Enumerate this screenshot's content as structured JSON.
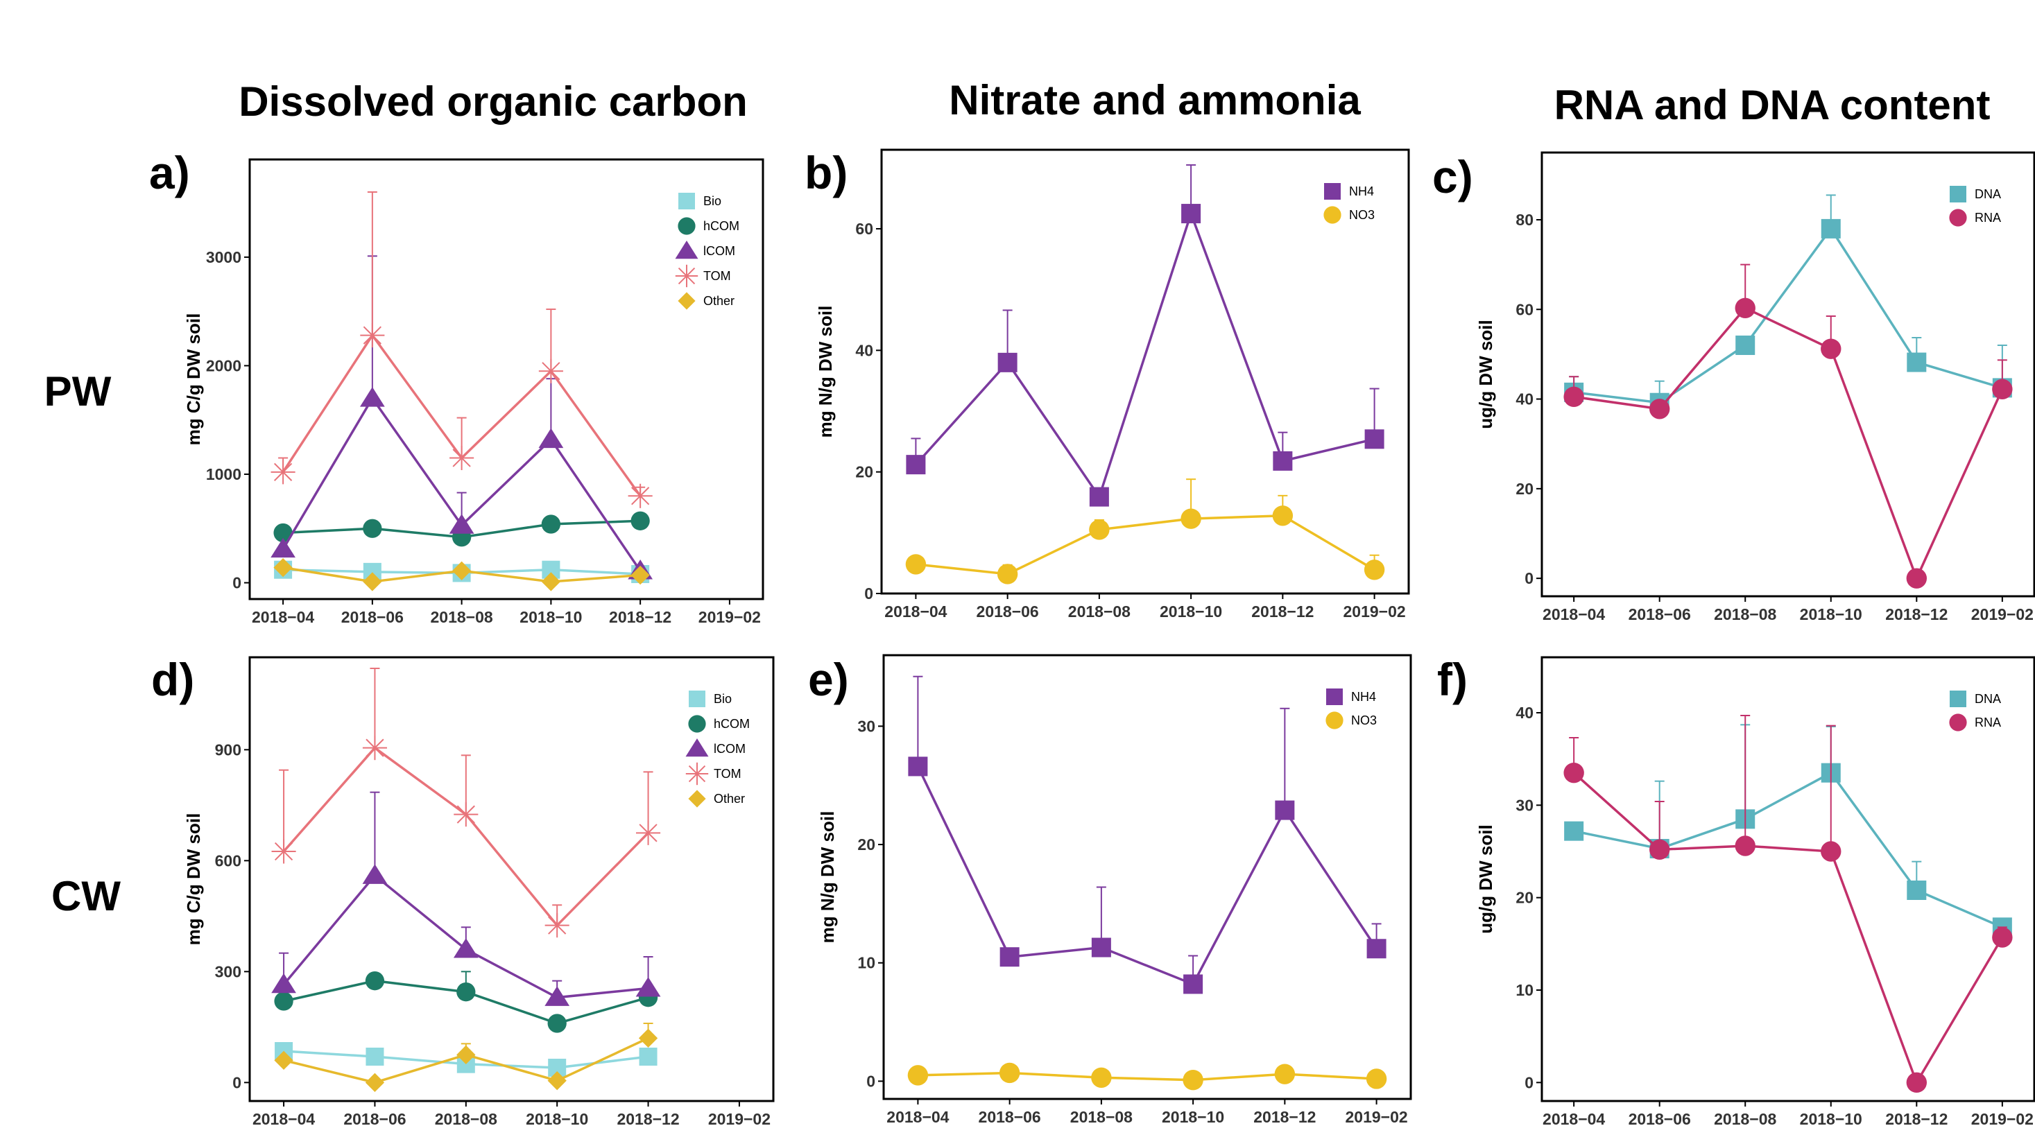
{
  "column_titles": [
    "Dissolved organic carbon",
    "Nitrate and ammonia",
    "RNA and DNA content"
  ],
  "row_labels": [
    "PW",
    "CW"
  ],
  "colors": {
    "Bio": "#8ED8DE",
    "hCOM": "#1E7B66",
    "lCOM": "#7B3A9E",
    "TOM": "#E8737A",
    "Other": "#E6B92C",
    "NH4": "#7B3A9E",
    "NO3": "#EEBF22",
    "DNA": "#5BB3BE",
    "RNA": "#C2306A"
  },
  "x_categories": [
    "2018−04",
    "2018−06",
    "2018−08",
    "2018−10",
    "2018−12",
    "2019−02"
  ],
  "chart_data": [
    {
      "panel": "a)",
      "type": "line",
      "ylabel": "mg C/g DW soil",
      "ylim": [
        -150,
        3900
      ],
      "yticks": [
        0,
        1000,
        2000,
        3000
      ],
      "legend": "top-right",
      "series": [
        {
          "name": "Bio",
          "marker": "square",
          "x": [
            "2018−04",
            "2018−06",
            "2018−08",
            "2018−10",
            "2018−12"
          ],
          "values": [
            120,
            100,
            90,
            120,
            80
          ],
          "err": [
            0,
            0,
            0,
            0,
            0
          ]
        },
        {
          "name": "hCOM",
          "marker": "circle",
          "x": [
            "2018−04",
            "2018−06",
            "2018−08",
            "2018−10",
            "2018−12"
          ],
          "values": [
            460,
            500,
            420,
            540,
            570
          ],
          "err": [
            0,
            0,
            0,
            0,
            0
          ]
        },
        {
          "name": "lCOM",
          "marker": "triangle",
          "x": [
            "2018−04",
            "2018−06",
            "2018−08",
            "2018−10",
            "2018−12"
          ],
          "values": [
            310,
            1700,
            530,
            1320,
            110
          ],
          "err": [
            0,
            1310,
            300,
            560,
            0
          ]
        },
        {
          "name": "TOM",
          "marker": "asterisk",
          "x": [
            "2018−04",
            "2018−06",
            "2018−08",
            "2018−10",
            "2018−12"
          ],
          "values": [
            1020,
            2280,
            1150,
            1950,
            800
          ],
          "err": [
            130,
            1320,
            370,
            570,
            80
          ]
        },
        {
          "name": "Other",
          "marker": "diamond",
          "x": [
            "2018−04",
            "2018−06",
            "2018−08",
            "2018−10",
            "2018−12"
          ],
          "values": [
            140,
            10,
            110,
            10,
            70
          ],
          "err": [
            0,
            0,
            0,
            0,
            0
          ]
        }
      ]
    },
    {
      "panel": "b)",
      "type": "line",
      "ylabel": "mg N/g DW soil",
      "ylim": [
        0,
        73
      ],
      "yticks": [
        0,
        20,
        40,
        60
      ],
      "legend": "top-right",
      "series": [
        {
          "name": "NH4",
          "marker": "square",
          "x": [
            "2018−04",
            "2018−06",
            "2018−08",
            "2018−10",
            "2018−12",
            "2019−02"
          ],
          "values": [
            21.2,
            38,
            15.9,
            62.5,
            21.8,
            25.4
          ],
          "err": [
            4.3,
            8.6,
            1.2,
            8.0,
            4.7,
            8.3
          ]
        },
        {
          "name": "NO3",
          "marker": "circle",
          "x": [
            "2018−04",
            "2018−06",
            "2018−08",
            "2018−10",
            "2018−12",
            "2019−02"
          ],
          "values": [
            4.8,
            3.2,
            10.5,
            12.3,
            12.8,
            3.9
          ],
          "err": [
            0,
            1.5,
            1.6,
            6.5,
            3.3,
            2.4
          ]
        }
      ]
    },
    {
      "panel": "c)",
      "type": "line",
      "ylabel": "ug/g DW soil",
      "ylim": [
        -4,
        95
      ],
      "yticks": [
        0,
        20,
        40,
        60,
        80
      ],
      "legend": "top-right",
      "series": [
        {
          "name": "DNA",
          "marker": "square",
          "x": [
            "2018−04",
            "2018−06",
            "2018−08",
            "2018−10",
            "2018−12",
            "2019−02"
          ],
          "values": [
            41.5,
            39.2,
            52,
            78,
            48.2,
            42.5
          ],
          "err": [
            3.5,
            4.8,
            0,
            7.5,
            5.5,
            9.5
          ]
        },
        {
          "name": "RNA",
          "marker": "circle",
          "x": [
            "2018−04",
            "2018−06",
            "2018−08",
            "2018−10",
            "2018−12",
            "2019−02"
          ],
          "values": [
            40.5,
            37.8,
            60.3,
            51.2,
            0,
            42.2
          ],
          "err": [
            4.5,
            0,
            9.7,
            7.3,
            0,
            6.5
          ]
        }
      ]
    },
    {
      "panel": "d)",
      "type": "line",
      "ylabel": "mg C/g DW soil",
      "ylim": [
        -50,
        1150
      ],
      "yticks": [
        0,
        300,
        600,
        900
      ],
      "legend": "top-right",
      "series": [
        {
          "name": "Bio",
          "marker": "square",
          "x": [
            "2018−04",
            "2018−06",
            "2018−08",
            "2018−10",
            "2018−12"
          ],
          "values": [
            85,
            70,
            50,
            40,
            70
          ],
          "err": [
            0,
            0,
            0,
            0,
            0
          ]
        },
        {
          "name": "hCOM",
          "marker": "circle",
          "x": [
            "2018−04",
            "2018−06",
            "2018−08",
            "2018−10",
            "2018−12"
          ],
          "values": [
            220,
            275,
            245,
            160,
            230
          ],
          "err": [
            0,
            0,
            55,
            0,
            0
          ]
        },
        {
          "name": "lCOM",
          "marker": "triangle",
          "x": [
            "2018−04",
            "2018−06",
            "2018−08",
            "2018−10",
            "2018−12"
          ],
          "values": [
            265,
            560,
            360,
            230,
            255
          ],
          "err": [
            85,
            225,
            60,
            45,
            85
          ]
        },
        {
          "name": "TOM",
          "marker": "asterisk",
          "x": [
            "2018−04",
            "2018−06",
            "2018−08",
            "2018−10",
            "2018−12"
          ],
          "values": [
            625,
            905,
            725,
            425,
            675
          ],
          "err": [
            220,
            215,
            160,
            55,
            165
          ]
        },
        {
          "name": "Other",
          "marker": "diamond",
          "x": [
            "2018−04",
            "2018−06",
            "2018−08",
            "2018−10",
            "2018−12"
          ],
          "values": [
            60,
            0,
            75,
            5,
            120
          ],
          "err": [
            0,
            0,
            30,
            0,
            40
          ]
        }
      ]
    },
    {
      "panel": "e)",
      "type": "line",
      "ylabel": "mg N/g DW soil",
      "ylim": [
        -1.5,
        36
      ],
      "yticks": [
        0,
        10,
        20,
        30
      ],
      "legend": "top-right",
      "series": [
        {
          "name": "NH4",
          "marker": "square",
          "x": [
            "2018−04",
            "2018−06",
            "2018−08",
            "2018−10",
            "2018−12",
            "2019−02"
          ],
          "values": [
            26.6,
            10.5,
            11.3,
            8.2,
            22.9,
            11.2
          ],
          "err": [
            7.6,
            0,
            5.1,
            2.4,
            8.6,
            2.1
          ]
        },
        {
          "name": "NO3",
          "marker": "circle",
          "x": [
            "2018−04",
            "2018−06",
            "2018−08",
            "2018−10",
            "2018−12",
            "2019−02"
          ],
          "values": [
            0.5,
            0.7,
            0.3,
            0.1,
            0.6,
            0.2
          ],
          "err": [
            0,
            0,
            0,
            0,
            0,
            0
          ]
        }
      ]
    },
    {
      "panel": "f)",
      "type": "line",
      "ylabel": "ug/g DW soil",
      "ylim": [
        -2,
        46
      ],
      "yticks": [
        0,
        10,
        20,
        30,
        40
      ],
      "legend": "top-right",
      "series": [
        {
          "name": "DNA",
          "marker": "square",
          "x": [
            "2018−04",
            "2018−06",
            "2018−08",
            "2018−10",
            "2018−12",
            "2019−02"
          ],
          "values": [
            27.2,
            25.3,
            28.5,
            33.5,
            20.8,
            16.8
          ],
          "err": [
            0,
            7.3,
            10.2,
            5.0,
            3.1,
            0
          ]
        },
        {
          "name": "RNA",
          "marker": "circle",
          "x": [
            "2018−04",
            "2018−06",
            "2018−08",
            "2018−10",
            "2018−12",
            "2019−02"
          ],
          "values": [
            33.5,
            25.2,
            25.6,
            25,
            0,
            15.7
          ],
          "err": [
            3.8,
            5.2,
            14.1,
            13.6,
            0,
            1.1
          ]
        }
      ]
    }
  ]
}
